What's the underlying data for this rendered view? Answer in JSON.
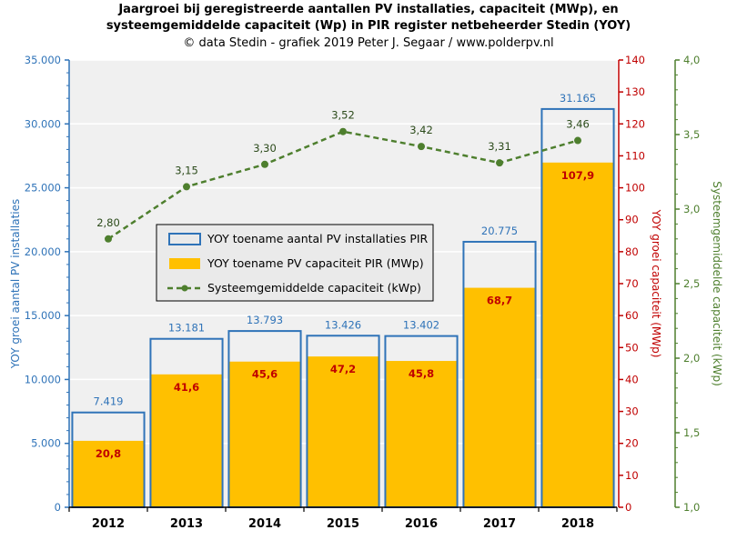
{
  "title_lines": [
    "Jaargroei bij geregistreerde aantallen PV installaties, capaciteit (MWp), en",
    "systeemgemiddelde capaciteit (Wp) in PIR register netbeheerder Stedin (YOY)",
    "© data Stedin - grafiek  2019 Peter J. Segaar / www.polderpv.nl"
  ],
  "colors": {
    "installations": "#2f73b8",
    "capacity": "#ffc000",
    "capacity_label": "#c00000",
    "average": "#4e7f2e",
    "plot_background": "#f0f0f0",
    "grid": "#ffffff"
  },
  "chart_data": {
    "type": "bar",
    "categories": [
      "2012",
      "2013",
      "2014",
      "2015",
      "2016",
      "2017",
      "2018"
    ],
    "series": [
      {
        "name": "YOY toename aantal PV installaties PIR",
        "axis": "left",
        "style": "bar-outline",
        "values": [
          7419,
          13181,
          13793,
          13426,
          13402,
          20775,
          31165
        ],
        "labels": [
          "7.419",
          "13.181",
          "13.793",
          "13.426",
          "13.402",
          "20.775",
          "31.165"
        ]
      },
      {
        "name": "YOY toename PV capaciteit PIR (MWp)",
        "axis": "right1",
        "style": "bar-filled",
        "values": [
          20.8,
          41.6,
          45.6,
          47.2,
          45.8,
          68.7,
          107.9
        ],
        "labels": [
          "20,8",
          "41,6",
          "45,6",
          "47,2",
          "45,8",
          "68,7",
          "107,9"
        ]
      },
      {
        "name": "Systeemgemiddelde capaciteit (kWp)",
        "axis": "right2",
        "style": "dashed-line-markers",
        "values": [
          2.8,
          3.15,
          3.3,
          3.52,
          3.42,
          3.31,
          3.46
        ],
        "labels": [
          "2,80",
          "3,15",
          "3,30",
          "3,52",
          "3,42",
          "3,31",
          "3,46"
        ]
      }
    ],
    "axes": {
      "left": {
        "label": "YOY groei aantal PV installaties",
        "range": [
          0,
          35000
        ],
        "ticks": [
          "0",
          "5.000",
          "10.000",
          "15.000",
          "20.000",
          "25.000",
          "30.000",
          "35.000"
        ]
      },
      "right1": {
        "label": "YOY groei capaciteit (MWp)",
        "range": [
          0,
          140
        ],
        "ticks": [
          "0",
          "10",
          "20",
          "30",
          "40",
          "50",
          "60",
          "70",
          "80",
          "90",
          "100",
          "110",
          "120",
          "130",
          "140"
        ]
      },
      "right2": {
        "label": "Systeemgemiddelde capaciteit (kWp)",
        "range": [
          1.0,
          4.0
        ],
        "ticks": [
          "1,0",
          "1,5",
          "2,0",
          "2,5",
          "3,0",
          "3,5",
          "4,0"
        ]
      }
    },
    "grid": true,
    "legend_placement": "center-left"
  }
}
